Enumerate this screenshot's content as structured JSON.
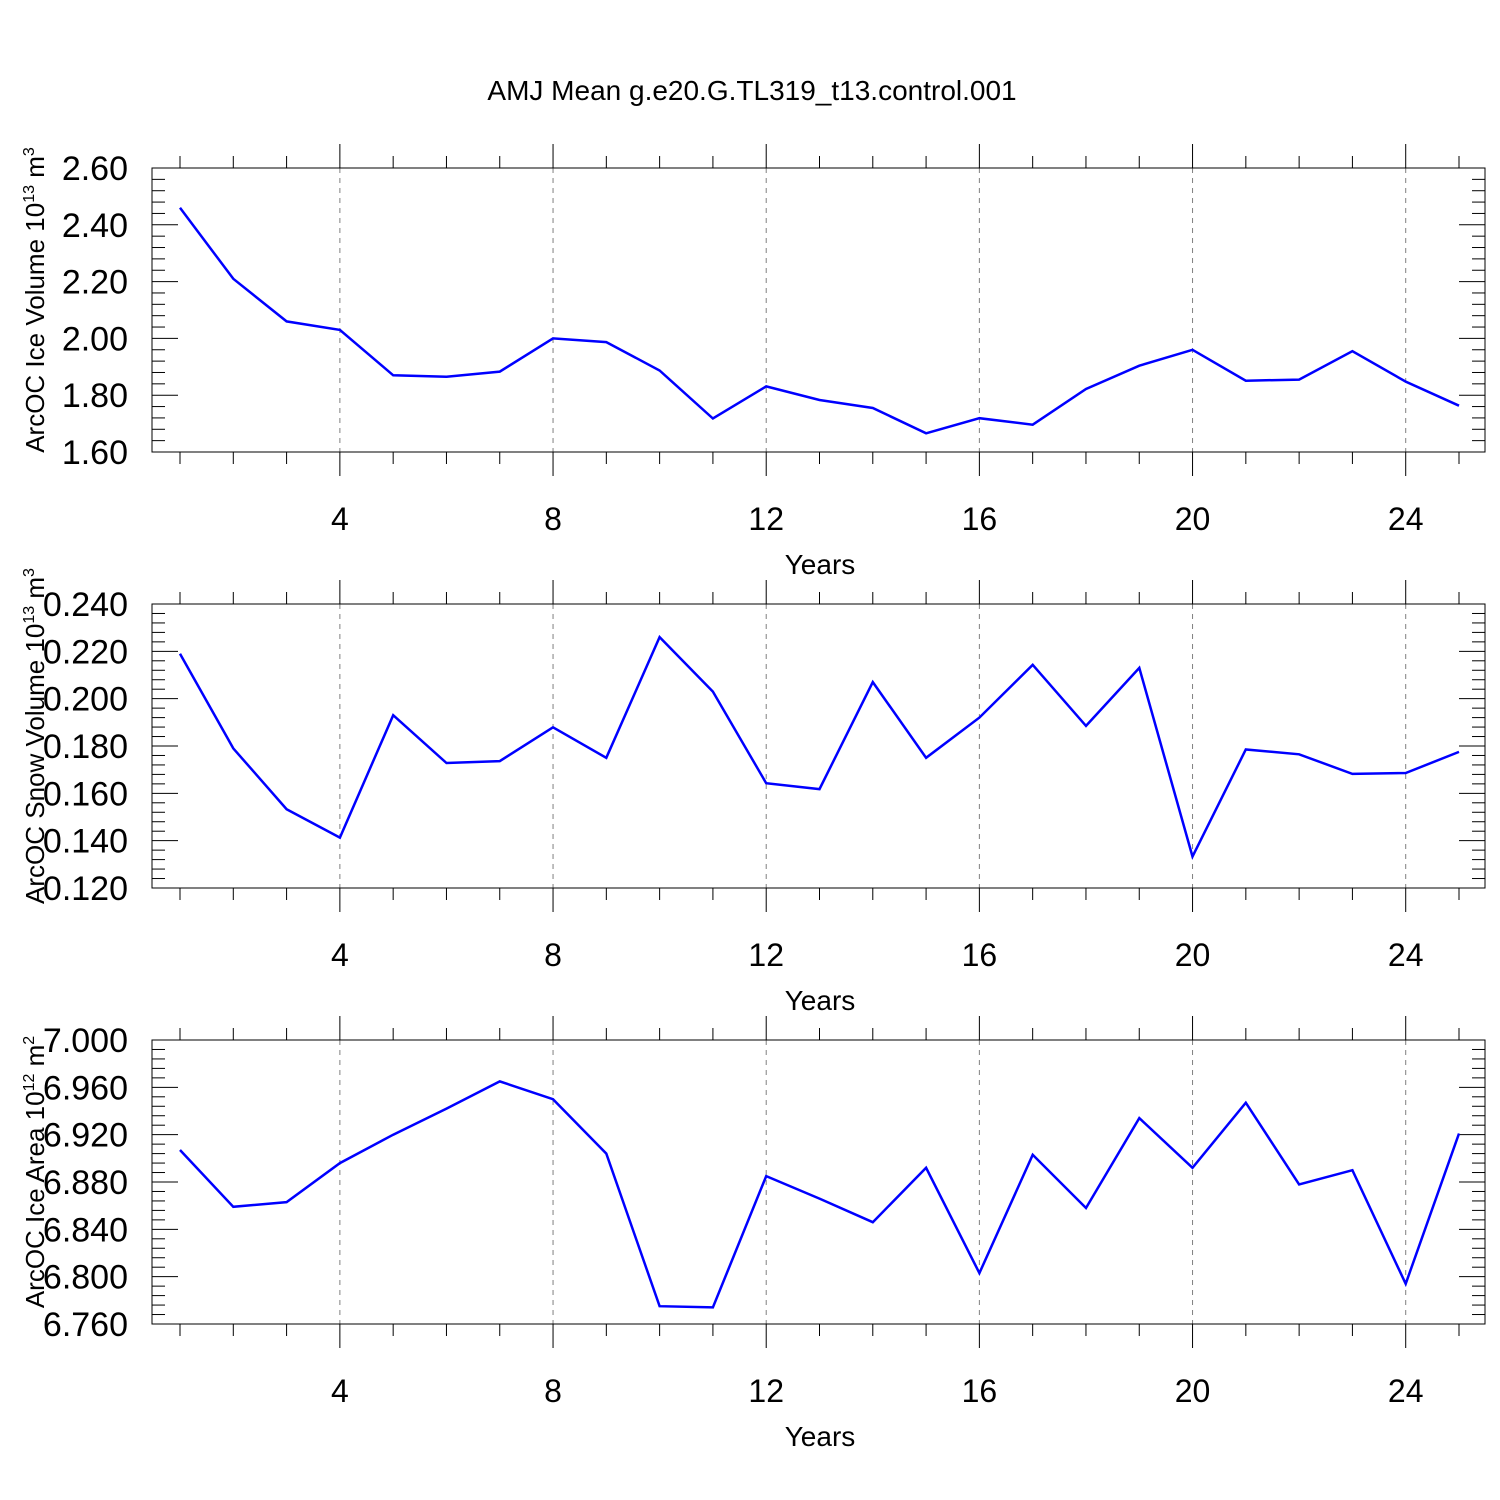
{
  "title": "AMJ Mean g.e20.G.TL319_t13.control.001",
  "colors": {
    "line": "#0000ff",
    "axis": "#000000",
    "grid": "#808080"
  },
  "chart_data": [
    {
      "type": "line",
      "ylabel": "ArcOC Ice Volume 10",
      "ylabel_exp": "13",
      "ylabel_unit": " m",
      "ylabel_unit_exp": "3",
      "xlabel": "Years",
      "xlim": [
        1,
        25
      ],
      "ylim": [
        1.6,
        2.6
      ],
      "xticks": [
        4,
        8,
        12,
        16,
        20,
        24
      ],
      "xtick_labels": [
        "4",
        "8",
        "12",
        "16",
        "20",
        "24"
      ],
      "yticks": [
        1.6,
        1.8,
        2.0,
        2.2,
        2.4,
        2.6
      ],
      "ytick_labels": [
        "1.60",
        "1.80",
        "2.00",
        "2.20",
        "2.40",
        "2.60"
      ],
      "grid": "vertical dashed at major x ticks",
      "x": [
        1,
        2,
        3,
        4,
        5,
        6,
        7,
        8,
        9,
        10,
        11,
        12,
        13,
        14,
        15,
        16,
        17,
        18,
        19,
        20,
        21,
        22,
        23,
        24,
        25
      ],
      "y": [
        2.46,
        2.21,
        2.06,
        2.03,
        1.87,
        1.865,
        1.883,
        2.0,
        1.987,
        1.887,
        1.718,
        1.831,
        1.783,
        1.755,
        1.666,
        1.719,
        1.696,
        1.822,
        1.904,
        1.96,
        1.851,
        1.855,
        1.955,
        1.848,
        1.763
      ]
    },
    {
      "type": "line",
      "ylabel": "ArcOC Snow Volume 10",
      "ylabel_exp": "13",
      "ylabel_unit": " m",
      "ylabel_unit_exp": "3",
      "xlabel": "Years",
      "xlim": [
        1,
        25
      ],
      "ylim": [
        0.12,
        0.24
      ],
      "xticks": [
        4,
        8,
        12,
        16,
        20,
        24
      ],
      "xtick_labels": [
        "4",
        "8",
        "12",
        "16",
        "20",
        "24"
      ],
      "yticks": [
        0.12,
        0.14,
        0.16,
        0.18,
        0.2,
        0.22,
        0.24
      ],
      "ytick_labels": [
        "0.120",
        "0.140",
        "0.160",
        "0.180",
        "0.200",
        "0.220",
        "0.240"
      ],
      "grid": "vertical dashed at major x ticks",
      "x": [
        1,
        2,
        3,
        4,
        5,
        6,
        7,
        8,
        9,
        10,
        11,
        12,
        13,
        14,
        15,
        16,
        17,
        18,
        19,
        20,
        21,
        22,
        23,
        24,
        25
      ],
      "y": [
        0.219,
        0.179,
        0.1533,
        0.1413,
        0.193,
        0.1728,
        0.1736,
        0.1879,
        0.175,
        0.226,
        0.203,
        0.1643,
        0.1618,
        0.207,
        0.175,
        0.192,
        0.2143,
        0.1885,
        0.213,
        0.1333,
        0.1785,
        0.1765,
        0.1682,
        0.1686,
        0.1775
      ]
    },
    {
      "type": "line",
      "ylabel": "ArcOC Ice Area 10",
      "ylabel_exp": "12",
      "ylabel_unit": " m",
      "ylabel_unit_exp": "2",
      "xlabel": "Years",
      "xlim": [
        1,
        25
      ],
      "ylim": [
        6.76,
        7.0
      ],
      "xticks": [
        4,
        8,
        12,
        16,
        20,
        24
      ],
      "xtick_labels": [
        "4",
        "8",
        "12",
        "16",
        "20",
        "24"
      ],
      "yticks": [
        6.76,
        6.8,
        6.84,
        6.88,
        6.92,
        6.96,
        7.0
      ],
      "ytick_labels": [
        "6.760",
        "6.800",
        "6.840",
        "6.880",
        "6.920",
        "6.960",
        "7.000"
      ],
      "grid": "vertical dashed at major x ticks",
      "x": [
        1,
        2,
        3,
        4,
        5,
        6,
        7,
        8,
        9,
        10,
        11,
        12,
        13,
        14,
        15,
        16,
        17,
        18,
        19,
        20,
        21,
        22,
        23,
        24,
        25
      ],
      "y": [
        6.907,
        6.859,
        6.863,
        6.896,
        6.92,
        6.942,
        6.965,
        6.95,
        6.904,
        6.775,
        6.774,
        6.885,
        6.866,
        6.846,
        6.892,
        6.803,
        6.903,
        6.858,
        6.934,
        6.892,
        6.947,
        6.878,
        6.89,
        6.794,
        6.921
      ]
    }
  ]
}
